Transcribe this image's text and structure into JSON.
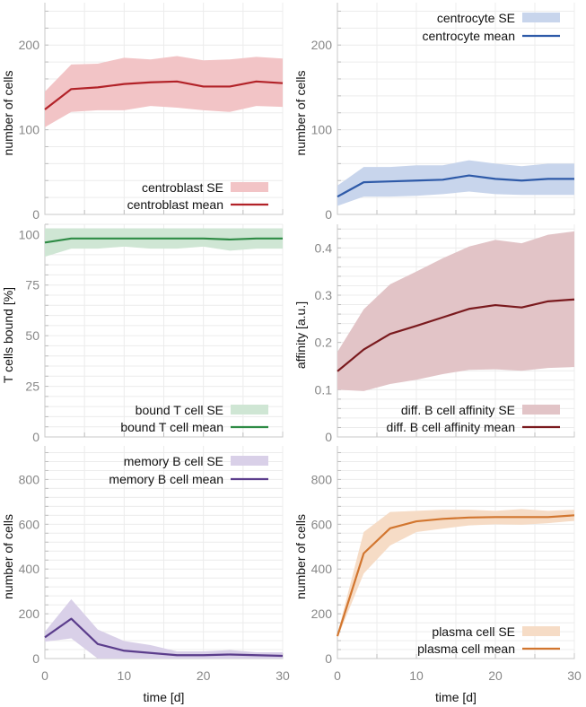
{
  "chart_data": [
    {
      "type": "line",
      "panel": "top-left",
      "xlabel": "",
      "ylabel": "number of cells",
      "xlim": [
        0,
        30
      ],
      "ylim": [
        0,
        250
      ],
      "xticks": [
        0,
        10,
        20,
        30
      ],
      "xtick_labels_shown": false,
      "yticks": [
        0,
        100,
        200
      ],
      "grid": true,
      "legend_position": "bottom-right",
      "color": "#b22228",
      "band_color": "#f2c4c6",
      "x": [
        0,
        3.33,
        6.67,
        10,
        13.33,
        16.67,
        20,
        23.33,
        26.67,
        30
      ],
      "series": [
        {
          "name": "centroblast mean",
          "kind": "line",
          "values": [
            124,
            148,
            150,
            154,
            156,
            157,
            151,
            151,
            157,
            155
          ]
        },
        {
          "name": "centroblast SE",
          "kind": "band",
          "lower": [
            103,
            121,
            123,
            123,
            128,
            126,
            123,
            121,
            128,
            127
          ],
          "upper": [
            145,
            177,
            178,
            185,
            183,
            187,
            182,
            183,
            186,
            184
          ]
        }
      ]
    },
    {
      "type": "line",
      "panel": "top-right",
      "xlabel": "",
      "ylabel": "number of cells",
      "xlim": [
        0,
        30
      ],
      "ylim": [
        0,
        250
      ],
      "xticks": [
        0,
        10,
        20,
        30
      ],
      "xtick_labels_shown": false,
      "yticks": [
        0,
        100,
        200
      ],
      "grid": true,
      "legend_position": "top-right",
      "color": "#2e5aa8",
      "band_color": "#c8d5ec",
      "x": [
        0,
        3.33,
        6.67,
        10,
        13.33,
        16.67,
        20,
        23.33,
        26.67,
        30
      ],
      "series": [
        {
          "name": "centrocyte mean",
          "kind": "line",
          "values": [
            21,
            38,
            39,
            40,
            41,
            46,
            42,
            40,
            42,
            42
          ]
        },
        {
          "name": "centrocyte SE",
          "kind": "band",
          "lower": [
            10,
            21,
            21,
            22,
            24,
            27,
            24,
            23,
            23,
            23
          ],
          "upper": [
            34,
            56,
            56,
            58,
            58,
            64,
            60,
            57,
            60,
            60
          ]
        }
      ]
    },
    {
      "type": "line",
      "panel": "middle-left",
      "xlabel": "",
      "ylabel": "T cells bound [%]",
      "xlim": [
        0,
        30
      ],
      "ylim": [
        0,
        105
      ],
      "xticks": [
        0,
        10,
        20,
        30
      ],
      "xtick_labels_shown": false,
      "yticks": [
        0,
        25,
        50,
        75,
        100
      ],
      "grid": true,
      "legend_position": "bottom-right",
      "color": "#2e8b45",
      "band_color": "#cfe6d4",
      "x": [
        0,
        3.33,
        6.67,
        10,
        13.33,
        16.67,
        20,
        23.33,
        26.67,
        30
      ],
      "series": [
        {
          "name": "bound T cell mean",
          "kind": "line",
          "values": [
            96,
            98,
            98,
            98,
            98,
            98,
            98,
            97.5,
            98,
            98
          ]
        },
        {
          "name": "bound T cell SE",
          "kind": "band",
          "lower": [
            89,
            93,
            93,
            94,
            93,
            93,
            94,
            92,
            93,
            93
          ],
          "upper": [
            103,
            103,
            103,
            103,
            103,
            103,
            103,
            103,
            103,
            103
          ]
        }
      ]
    },
    {
      "type": "line",
      "panel": "middle-right",
      "xlabel": "",
      "ylabel": "affinity [a.u.]",
      "xlim": [
        0,
        30
      ],
      "ylim": [
        0,
        0.45
      ],
      "xticks": [
        0,
        10,
        20,
        30
      ],
      "xtick_labels_shown": false,
      "yticks": [
        0,
        0.1,
        0.2,
        0.3,
        0.4
      ],
      "grid": true,
      "legend_position": "bottom-right",
      "color": "#7a1a1e",
      "band_color": "#e2c4c7",
      "x": [
        0,
        3.33,
        6.67,
        10,
        13.33,
        16.67,
        20,
        23.33,
        26.67,
        30
      ],
      "series": [
        {
          "name": "diff. B cell affinity mean",
          "kind": "line",
          "values": [
            0.139,
            0.185,
            0.218,
            0.235,
            0.253,
            0.271,
            0.279,
            0.274,
            0.287,
            0.291
          ]
        },
        {
          "name": "diff. B cell affinity SE",
          "kind": "band",
          "lower": [
            0.1,
            0.097,
            0.112,
            0.121,
            0.133,
            0.142,
            0.143,
            0.14,
            0.146,
            0.148
          ],
          "upper": [
            0.18,
            0.27,
            0.323,
            0.35,
            0.378,
            0.403,
            0.417,
            0.41,
            0.428,
            0.435
          ]
        }
      ]
    },
    {
      "type": "line",
      "panel": "bottom-left",
      "xlabel": "time [d]",
      "ylabel": "number of cells",
      "xlim": [
        0,
        30
      ],
      "ylim": [
        0,
        950
      ],
      "xticks": [
        0,
        10,
        20,
        30
      ],
      "xtick_labels_shown": true,
      "yticks": [
        0,
        200,
        400,
        600,
        800
      ],
      "grid": true,
      "legend_position": "top-right",
      "color": "#5b3d8c",
      "band_color": "#d9d0e8",
      "x": [
        0,
        3.33,
        6.67,
        10,
        13.33,
        16.67,
        20,
        23.33,
        26.67,
        30
      ],
      "series": [
        {
          "name": "memory B cell mean",
          "kind": "line",
          "values": [
            95,
            178,
            65,
            35,
            25,
            15,
            15,
            18,
            15,
            12
          ]
        },
        {
          "name": "memory B cell SE",
          "kind": "band",
          "lower": [
            75,
            90,
            0,
            0,
            0,
            0,
            0,
            0,
            0,
            0
          ],
          "upper": [
            120,
            265,
            130,
            78,
            60,
            32,
            32,
            38,
            28,
            28
          ]
        }
      ]
    },
    {
      "type": "line",
      "panel": "bottom-right",
      "xlabel": "time [d]",
      "ylabel": "number of cells",
      "xlim": [
        0,
        30
      ],
      "ylim": [
        0,
        950
      ],
      "xticks": [
        0,
        10,
        20,
        30
      ],
      "xtick_labels_shown": true,
      "yticks": [
        0,
        200,
        400,
        600,
        800
      ],
      "grid": true,
      "legend_position": "bottom-right",
      "color": "#d2762f",
      "band_color": "#f6dcc6",
      "x": [
        0,
        3.33,
        6.67,
        10,
        13.33,
        16.67,
        20,
        23.33,
        26.67,
        30
      ],
      "series": [
        {
          "name": "plasma cell mean",
          "kind": "line",
          "values": [
            100,
            470,
            582,
            613,
            624,
            630,
            632,
            632,
            632,
            640
          ]
        },
        {
          "name": "plasma cell SE",
          "kind": "band",
          "lower": [
            92,
            380,
            505,
            565,
            580,
            595,
            600,
            598,
            605,
            615
          ],
          "upper": [
            110,
            565,
            655,
            660,
            665,
            665,
            660,
            668,
            660,
            665
          ]
        }
      ]
    }
  ]
}
